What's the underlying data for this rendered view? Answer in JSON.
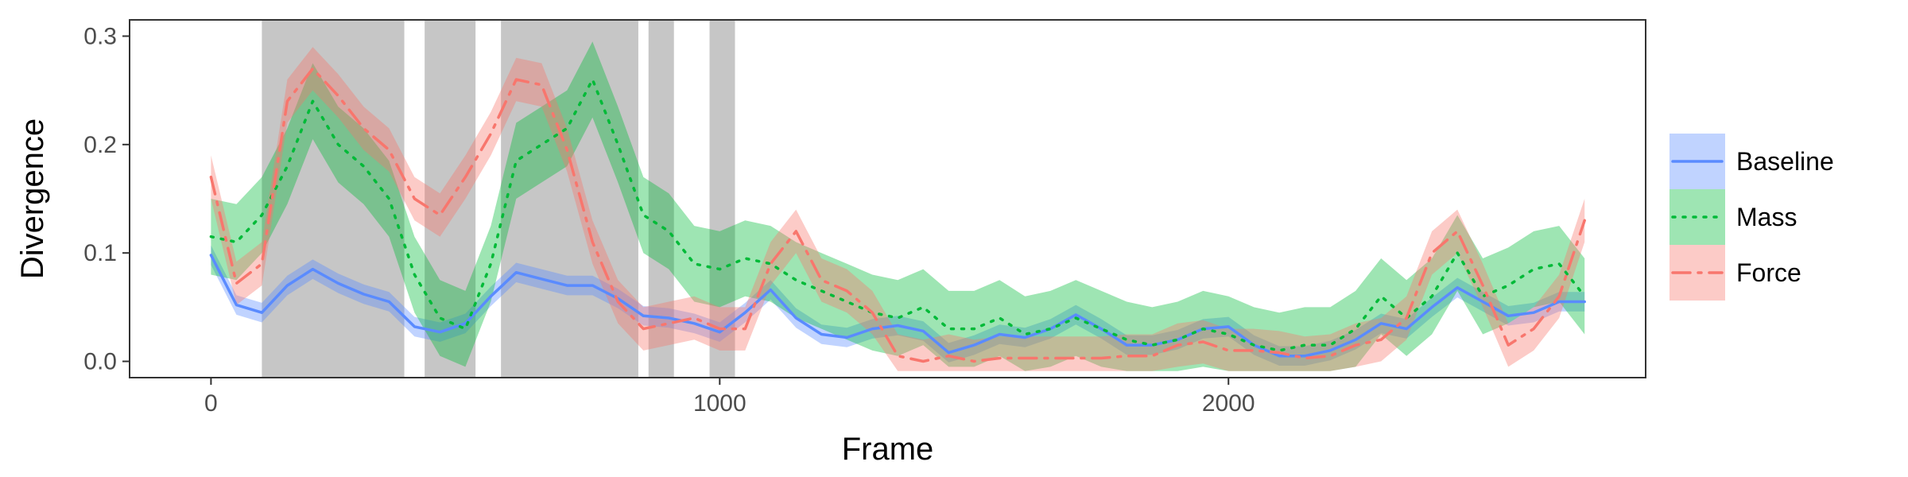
{
  "chart_data": {
    "type": "line",
    "title": "",
    "xlabel": "Frame",
    "ylabel": "Divergence",
    "xlim": [
      -160,
      2820
    ],
    "ylim": [
      -0.015,
      0.315
    ],
    "x_ticks": [
      0,
      1000,
      2000
    ],
    "x_tick_labels": [
      "0",
      "1000",
      "2000"
    ],
    "y_ticks": [
      0.0,
      0.1,
      0.2,
      0.3
    ],
    "y_tick_labels": [
      "0.0",
      "0.1",
      "0.2",
      "0.3"
    ],
    "grid": false,
    "legend_position": "right",
    "shaded_regions": [
      [
        100,
        380
      ],
      [
        420,
        520
      ],
      [
        570,
        840
      ],
      [
        860,
        910
      ],
      [
        980,
        1030
      ]
    ],
    "series": [
      {
        "name": "Baseline",
        "color": "#5a8bff",
        "line_style": "solid",
        "x": [
          0,
          50,
          100,
          150,
          200,
          250,
          300,
          350,
          400,
          450,
          500,
          550,
          600,
          650,
          700,
          750,
          800,
          850,
          900,
          950,
          1000,
          1050,
          1100,
          1150,
          1200,
          1250,
          1300,
          1350,
          1400,
          1450,
          1500,
          1550,
          1600,
          1650,
          1700,
          1750,
          1800,
          1850,
          1900,
          1950,
          2000,
          2050,
          2100,
          2150,
          2200,
          2250,
          2300,
          2350,
          2400,
          2450,
          2500,
          2550,
          2600,
          2650,
          2700
        ],
        "y": [
          0.098,
          0.052,
          0.045,
          0.07,
          0.085,
          0.072,
          0.062,
          0.055,
          0.032,
          0.027,
          0.035,
          0.06,
          0.082,
          0.076,
          0.07,
          0.07,
          0.058,
          0.042,
          0.04,
          0.035,
          0.027,
          0.045,
          0.066,
          0.04,
          0.025,
          0.022,
          0.03,
          0.033,
          0.028,
          0.008,
          0.015,
          0.025,
          0.022,
          0.03,
          0.043,
          0.03,
          0.015,
          0.015,
          0.02,
          0.03,
          0.032,
          0.015,
          0.005,
          0.005,
          0.01,
          0.02,
          0.035,
          0.03,
          0.05,
          0.068,
          0.055,
          0.042,
          0.045,
          0.055,
          0.055
        ],
        "band": 0.009
      },
      {
        "name": "Mass",
        "color": "#00ba38",
        "line_style": "dotted",
        "x": [
          0,
          50,
          100,
          150,
          200,
          250,
          300,
          350,
          400,
          450,
          500,
          550,
          600,
          650,
          700,
          750,
          800,
          850,
          900,
          950,
          1000,
          1050,
          1100,
          1150,
          1200,
          1250,
          1300,
          1350,
          1400,
          1450,
          1500,
          1550,
          1600,
          1650,
          1700,
          1750,
          1800,
          1850,
          1900,
          1950,
          2000,
          2050,
          2100,
          2150,
          2200,
          2250,
          2300,
          2350,
          2400,
          2450,
          2500,
          2550,
          2600,
          2650,
          2700
        ],
        "y": [
          0.115,
          0.11,
          0.135,
          0.18,
          0.24,
          0.2,
          0.18,
          0.15,
          0.08,
          0.04,
          0.03,
          0.09,
          0.185,
          0.2,
          0.215,
          0.26,
          0.2,
          0.135,
          0.12,
          0.09,
          0.085,
          0.095,
          0.09,
          0.075,
          0.065,
          0.055,
          0.045,
          0.04,
          0.05,
          0.03,
          0.03,
          0.04,
          0.025,
          0.03,
          0.04,
          0.03,
          0.02,
          0.015,
          0.02,
          0.03,
          0.025,
          0.015,
          0.01,
          0.015,
          0.015,
          0.03,
          0.06,
          0.04,
          0.06,
          0.1,
          0.06,
          0.07,
          0.085,
          0.09,
          0.06
        ],
        "band": 0.035
      },
      {
        "name": "Force",
        "color": "#f8766d",
        "line_style": "dashdot",
        "x": [
          0,
          50,
          100,
          150,
          200,
          250,
          300,
          350,
          400,
          450,
          500,
          550,
          600,
          650,
          700,
          750,
          800,
          850,
          900,
          950,
          1000,
          1050,
          1100,
          1150,
          1200,
          1250,
          1300,
          1350,
          1400,
          1450,
          1500,
          1550,
          1600,
          1650,
          1700,
          1750,
          1800,
          1850,
          1900,
          1950,
          2000,
          2050,
          2100,
          2150,
          2200,
          2250,
          2300,
          2350,
          2400,
          2450,
          2500,
          2550,
          2600,
          2650,
          2700
        ],
        "y": [
          0.17,
          0.072,
          0.09,
          0.24,
          0.27,
          0.245,
          0.215,
          0.195,
          0.15,
          0.135,
          0.17,
          0.21,
          0.26,
          0.255,
          0.195,
          0.11,
          0.055,
          0.03,
          0.035,
          0.04,
          0.03,
          0.03,
          0.09,
          0.12,
          0.075,
          0.065,
          0.045,
          0.005,
          0.0,
          0.005,
          0.0,
          0.003,
          0.003,
          0.003,
          0.003,
          0.003,
          0.005,
          0.005,
          0.015,
          0.018,
          0.01,
          0.01,
          0.008,
          0.003,
          0.005,
          0.015,
          0.02,
          0.04,
          0.1,
          0.12,
          0.07,
          0.015,
          0.03,
          0.06,
          0.13
        ],
        "band": 0.02
      }
    ]
  }
}
